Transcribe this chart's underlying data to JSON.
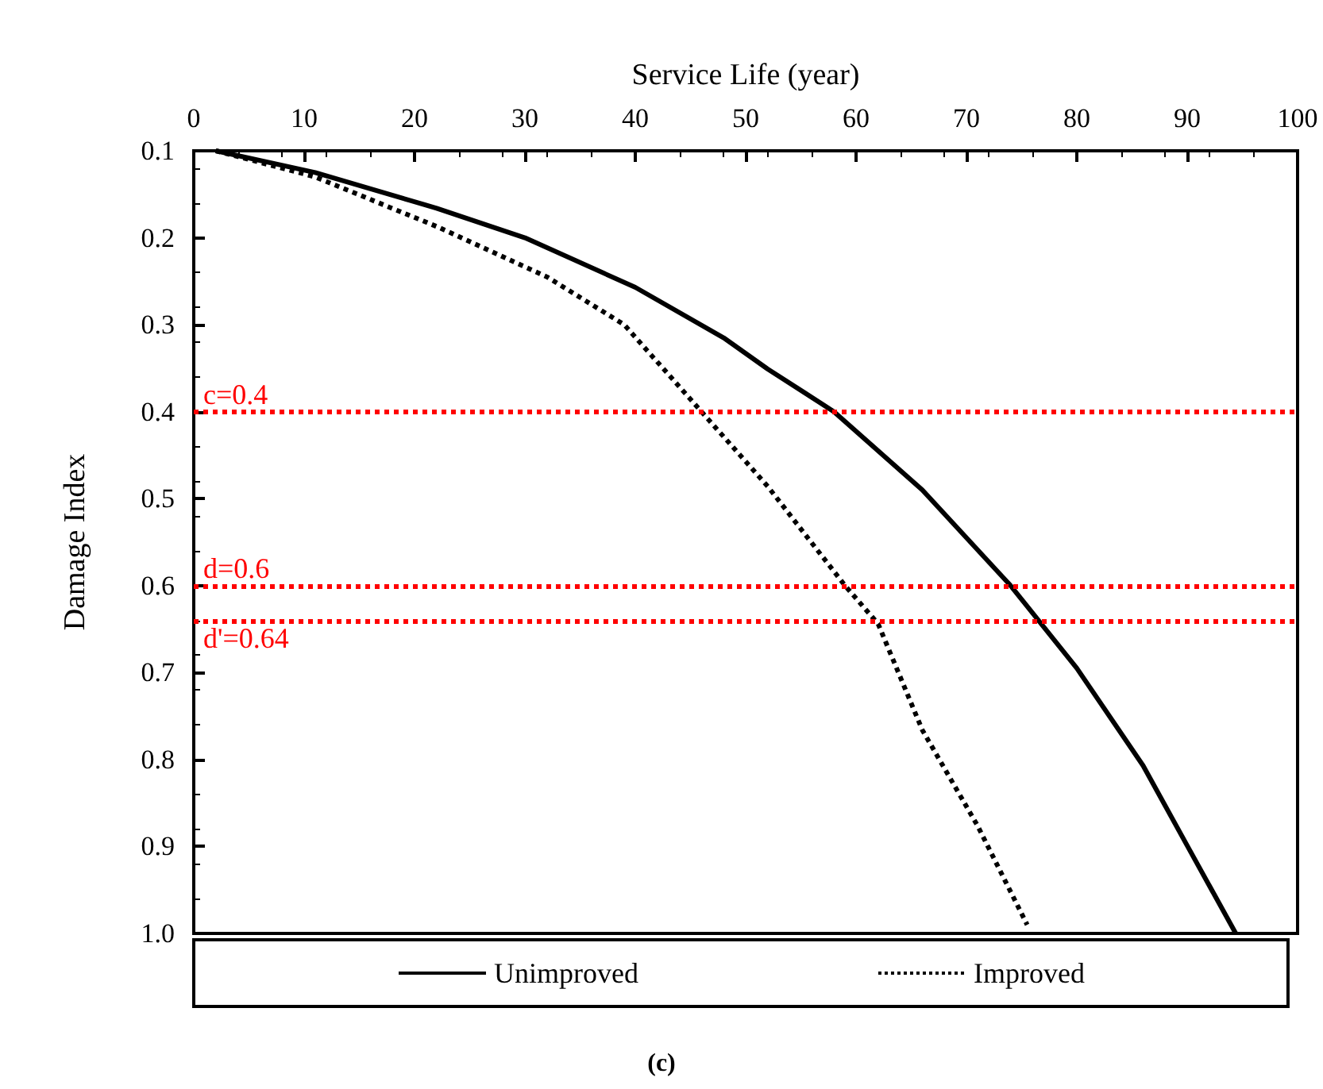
{
  "chart_data": {
    "type": "line",
    "xlabel": "Service Life (year)",
    "ylabel": "Damage Index",
    "xlim": [
      0,
      100
    ],
    "xticks": [
      0,
      10,
      20,
      30,
      40,
      50,
      60,
      70,
      80,
      90,
      100
    ],
    "ylim": [
      1,
      0.1
    ],
    "yticks": [
      0.1,
      0.2,
      0.3,
      0.4,
      0.5,
      0.6,
      0.7,
      0.8,
      0.9,
      {
        "value": 1,
        "label": "1.0"
      }
    ],
    "grid": false,
    "legend": "bottom",
    "marker": "none",
    "series": [
      {
        "name": "Unimproved",
        "color": "#000000",
        "line_style": "solid",
        "x": [
          2,
          11,
          22,
          30,
          40,
          48,
          52,
          58,
          66,
          74,
          80,
          86,
          90,
          94.4
        ],
        "values": [
          0.1,
          0.125,
          0.166,
          0.2,
          0.257,
          0.315,
          0.351,
          0.4,
          0.49,
          0.6,
          0.695,
          0.807,
          0.899,
          1.0
        ]
      },
      {
        "name": "Improved",
        "color": "#000000",
        "line_style": "dotted",
        "x": [
          2,
          11,
          22,
          32,
          39,
          46,
          52,
          59,
          62,
          66,
          71,
          75.5
        ],
        "values": [
          0.1,
          0.13,
          0.187,
          0.245,
          0.3,
          0.4,
          0.486,
          0.6,
          0.644,
          0.766,
          0.876,
          0.99
        ]
      }
    ],
    "ref_lines": [
      {
        "axis": "y",
        "value": 0.4,
        "label": "c=0.4",
        "color": "#ff0000",
        "line_style": "dotted"
      },
      {
        "axis": "y",
        "value": 0.6,
        "label": "d=0.6",
        "color": "#ff0000",
        "line_style": "dotted"
      },
      {
        "axis": "y",
        "value": 0.64,
        "label": "d'=0.64",
        "color": "#ff0000",
        "line_style": "dotted"
      }
    ],
    "annotations": [
      "(c)"
    ]
  }
}
